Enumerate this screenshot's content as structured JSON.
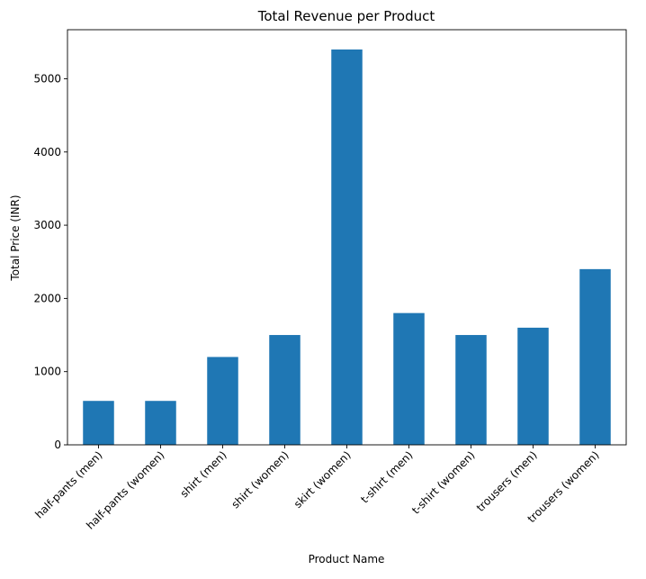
{
  "chart_data": {
    "type": "bar",
    "title": "Total Revenue per Product",
    "xlabel": "Product Name",
    "ylabel": "Total Price (INR)",
    "categories": [
      "half-pants (men)",
      "half-pants (women)",
      "shirt (men)",
      "shirt (women)",
      "skirt (women)",
      "t-shirt (men)",
      "t-shirt (women)",
      "trousers (men)",
      "trousers (women)"
    ],
    "values": [
      600,
      600,
      1200,
      1500,
      5400,
      1800,
      1500,
      1600,
      2400
    ],
    "ylim": [
      0,
      5670
    ],
    "yticks": [
      0,
      1000,
      2000,
      3000,
      4000,
      5000
    ],
    "grid": false,
    "legend": "none",
    "colors": {
      "bar": "#1f77b4",
      "axis": "#000000",
      "background": "#ffffff"
    }
  }
}
